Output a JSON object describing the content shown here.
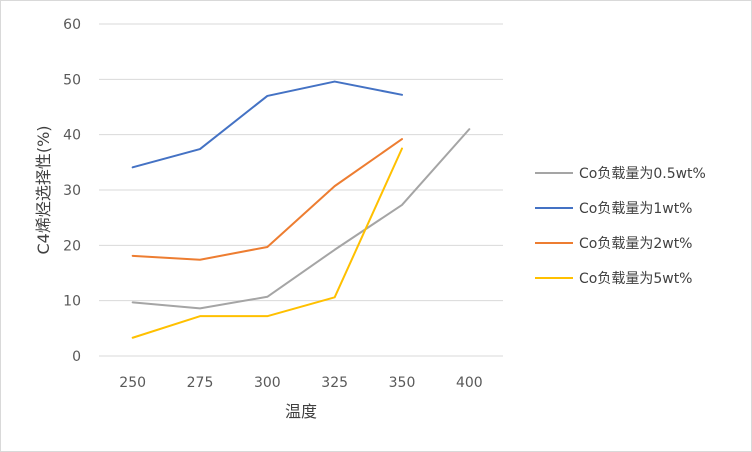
{
  "chart_data": {
    "type": "line",
    "title": "",
    "xlabel": "温度",
    "ylabel": "C4烯烃选择性(%)",
    "categories": [
      "250",
      "275",
      "300",
      "325",
      "350",
      "400"
    ],
    "ylim": [
      0,
      60
    ],
    "yticks": [
      "0",
      "10",
      "20",
      "30",
      "40",
      "50",
      "60"
    ],
    "grid": "horizontal",
    "legend_position": "right",
    "series": [
      {
        "name": "Co负载量为0.5wt%",
        "color": "#a5a5a5",
        "values": [
          9.7,
          8.6,
          10.7,
          19.2,
          27.3,
          41.0
        ]
      },
      {
        "name": "Co负载量为1wt%",
        "color": "#4472c4",
        "values": [
          34.1,
          37.4,
          47.0,
          49.6,
          47.2,
          null
        ]
      },
      {
        "name": "Co负载量为2wt%",
        "color": "#ed7d31",
        "values": [
          18.1,
          17.4,
          19.7,
          30.7,
          39.2,
          null
        ]
      },
      {
        "name": "Co负载量为5wt%",
        "color": "#ffc000",
        "values": [
          3.3,
          7.2,
          7.2,
          10.6,
          37.5,
          null
        ]
      }
    ]
  }
}
